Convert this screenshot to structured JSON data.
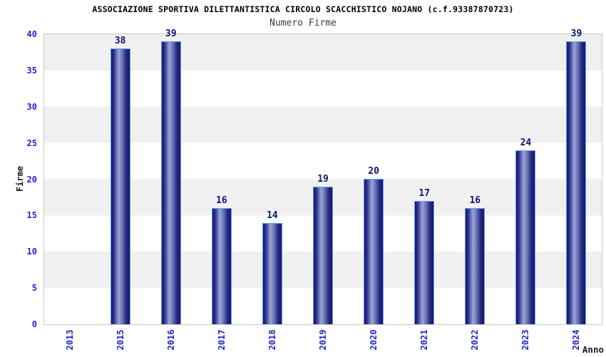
{
  "header": {
    "title": "ASSOCIAZIONE SPORTIVA DILETTANTISTICA CIRCOLO SCACCHISTICO NOJANO (c.f.93387870723)",
    "subtitle": "Numero Firme"
  },
  "chart_data": {
    "type": "bar",
    "title": "Numero Firme",
    "xlabel": "Anno",
    "ylabel": "Firme",
    "categories": [
      "2013",
      "2015",
      "2016",
      "2017",
      "2018",
      "2019",
      "2020",
      "2021",
      "2022",
      "2023",
      "2024"
    ],
    "values": [
      0,
      38,
      39,
      16,
      14,
      19,
      20,
      17,
      16,
      24,
      39
    ],
    "ylim": [
      0,
      40
    ],
    "yticks": [
      0,
      5,
      10,
      15,
      20,
      25,
      30,
      35,
      40
    ],
    "grid": "horizontal-bands-alternating",
    "legend": "none",
    "bar_labels_shown": true
  },
  "colors": {
    "bar_dark": "#17176d",
    "bar_light": "#9aa6d4",
    "bar_border": "#57a0f0",
    "axis_tick_label": "#2323d4",
    "bar_value_label": "#131378",
    "band_gray": "#f0f0f0",
    "band_white": "#ffffff",
    "plot_border": "#c9c9c9",
    "title_color": "#000000",
    "subtitle_color": "#3c3c3c"
  }
}
